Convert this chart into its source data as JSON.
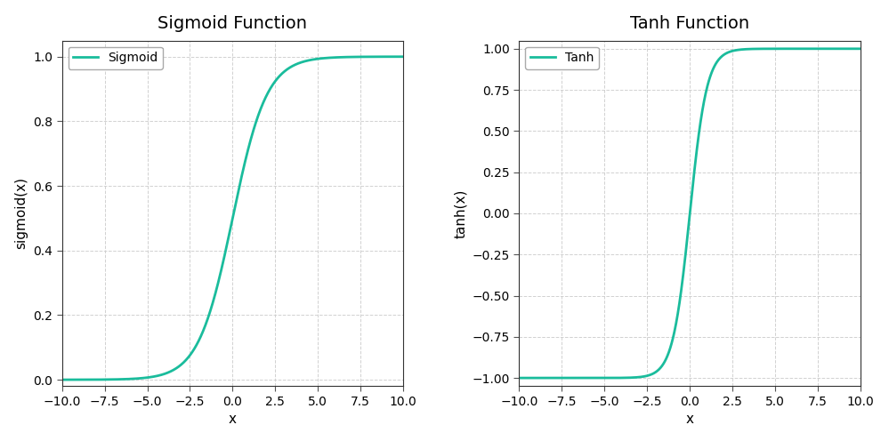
{
  "title_left": "Sigmoid Function",
  "title_right": "Tanh Function",
  "xlabel": "x",
  "ylabel_left": "sigmoid(x)",
  "ylabel_right": "tanh(x)",
  "legend_left": "Sigmoid",
  "legend_right": "Tanh",
  "x_min": -10.0,
  "x_max": 10.0,
  "sigmoid_ylim": [
    -0.02,
    1.05
  ],
  "tanh_ylim": [
    -1.05,
    1.05
  ],
  "line_color": "#1abc9c",
  "line_width": 2.0,
  "background_color": "#ffffff",
  "fig_background_color": "#f5f5f5",
  "grid_color": "#cccccc",
  "grid_linestyle": "--",
  "grid_alpha": 0.9,
  "title_fontsize": 14,
  "label_fontsize": 11,
  "tick_fontsize": 10,
  "legend_fontsize": 10,
  "x_ticks": [
    -10.0,
    -7.5,
    -5.0,
    -2.5,
    0.0,
    2.5,
    5.0,
    7.5,
    10.0
  ],
  "sigmoid_y_ticks": [
    0.0,
    0.2,
    0.4,
    0.6,
    0.8,
    1.0
  ],
  "tanh_y_ticks": [
    -1.0,
    -0.75,
    -0.5,
    -0.25,
    0.0,
    0.25,
    0.5,
    0.75,
    1.0
  ]
}
